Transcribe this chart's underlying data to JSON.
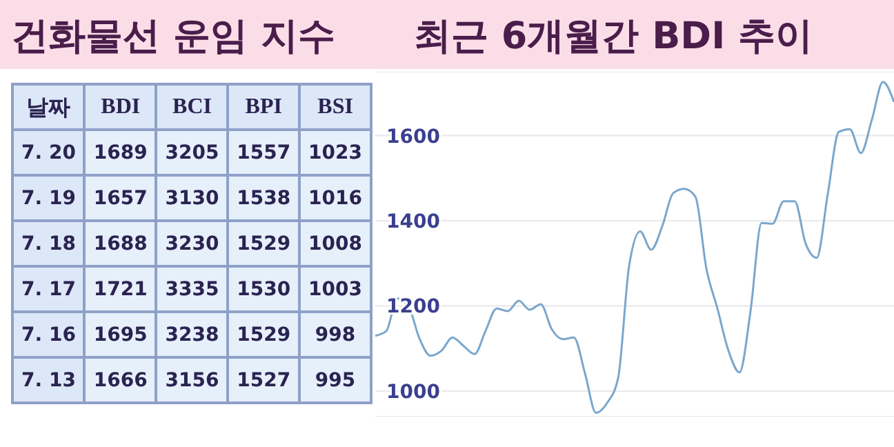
{
  "chart_data": [
    {
      "type": "other",
      "title": "건화물선 운임 지수",
      "xlabel": "날짜",
      "categories": [
        "7. 20",
        "7. 19",
        "7. 18",
        "7. 17",
        "7. 16",
        "7. 13"
      ],
      "data_labels": true,
      "legend": "top",
      "series": [
        {
          "name": "BDI",
          "values": [
            1689,
            1657,
            1688,
            1721,
            1695,
            1666
          ]
        },
        {
          "name": "BCI",
          "values": [
            3205,
            3130,
            3230,
            3335,
            3238,
            3156
          ]
        },
        {
          "name": "BPI",
          "values": [
            1557,
            1538,
            1529,
            1530,
            1529,
            1527
          ]
        },
        {
          "name": "BSI",
          "values": [
            1023,
            1016,
            1008,
            1003,
            998,
            995
          ]
        }
      ]
    },
    {
      "type": "line",
      "title": "최근 6개월간 BDI 추이",
      "categories": [
        null,
        null,
        null,
        null,
        null,
        null,
        null,
        null,
        null,
        null,
        null,
        null,
        null,
        null,
        null,
        null,
        null,
        null,
        null,
        null,
        null,
        null,
        null,
        null,
        null,
        null,
        null,
        null,
        null,
        null,
        null,
        null,
        null,
        null,
        null,
        null,
        null,
        null,
        null,
        null,
        null,
        null,
        null,
        null,
        null,
        null,
        null,
        null
      ],
      "series": [
        {
          "color": "#7ba7cc",
          "values": [
            1130,
            1141,
            1218,
            1200,
            1124,
            1083,
            1095,
            1126,
            1106,
            1087,
            1142,
            1194,
            1188,
            1212,
            1191,
            1204,
            1145,
            1122,
            1126,
            1042,
            949,
            972,
            1030,
            1294,
            1375,
            1332,
            1387,
            1465,
            1475,
            1457,
            1288,
            1194,
            1095,
            1044,
            1188,
            1395,
            1393,
            1446,
            1446,
            1346,
            1313,
            1463,
            1609,
            1615,
            1559,
            1638,
            1726,
            1679
          ]
        }
      ],
      "ylim": [
        940,
        1750
      ],
      "yticks": [
        1000,
        1200,
        1400,
        1600
      ],
      "grid": "y",
      "marker": "none",
      "line_style": "solid"
    }
  ]
}
